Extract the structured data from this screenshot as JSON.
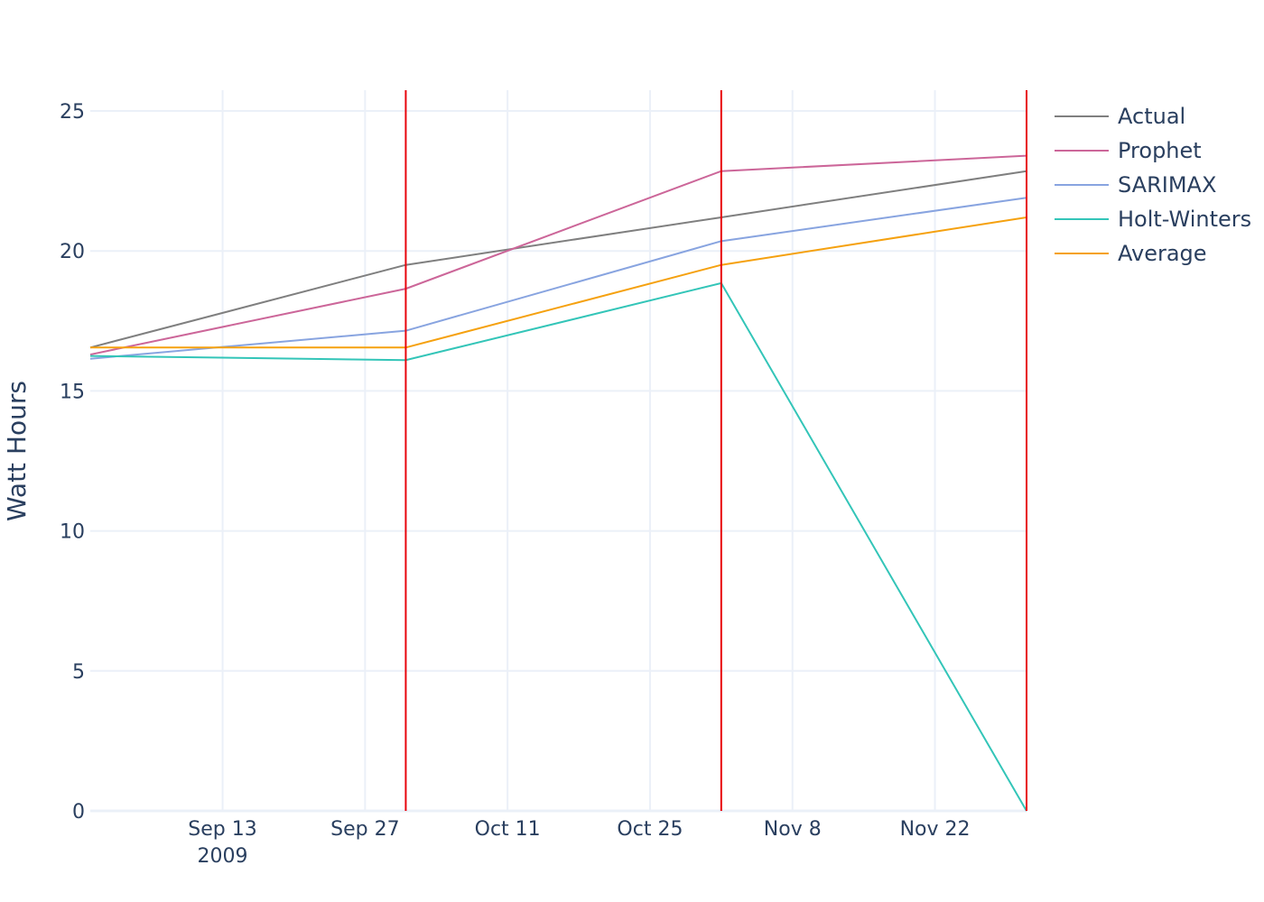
{
  "chart_data": {
    "type": "line",
    "ylabel": "Watt Hours",
    "xlim": [
      "2009-08-31",
      "2009-12-01"
    ],
    "ylim": [
      0,
      26
    ],
    "y_ticks": [
      0,
      5,
      10,
      15,
      20,
      25
    ],
    "x_ticks": [
      {
        "date": "2009-09-13",
        "label": "Sep 13",
        "sublabel": "2009"
      },
      {
        "date": "2009-09-27",
        "label": "Sep 27",
        "sublabel": ""
      },
      {
        "date": "2009-10-11",
        "label": "Oct 11",
        "sublabel": ""
      },
      {
        "date": "2009-10-25",
        "label": "Oct 25",
        "sublabel": ""
      },
      {
        "date": "2009-11-08",
        "label": "Nov 8",
        "sublabel": ""
      },
      {
        "date": "2009-11-22",
        "label": "Nov 22",
        "sublabel": ""
      }
    ],
    "x": [
      "2009-08-31",
      "2009-10-01",
      "2009-11-01",
      "2009-12-01"
    ],
    "series": [
      {
        "name": "Actual",
        "color": "#7f7f7f",
        "values": [
          16.55,
          19.5,
          21.2,
          22.85
        ]
      },
      {
        "name": "Prophet",
        "color": "#cc6699",
        "values": [
          16.3,
          18.65,
          22.85,
          23.4
        ]
      },
      {
        "name": "SARIMAX",
        "color": "#88a4e0",
        "values": [
          16.15,
          17.15,
          20.35,
          21.9
        ]
      },
      {
        "name": "Holt-Winters",
        "color": "#33c5b8",
        "values": [
          16.25,
          16.1,
          18.85,
          0.0
        ]
      },
      {
        "name": "Average",
        "color": "#f5a10f",
        "values": [
          16.55,
          16.55,
          19.5,
          21.2
        ]
      }
    ],
    "vertical_markers": {
      "color": "#e8040c",
      "dates": [
        "2009-10-01",
        "2009-11-01",
        "2009-12-01"
      ]
    },
    "grid": true,
    "legend_position": "top-right"
  }
}
